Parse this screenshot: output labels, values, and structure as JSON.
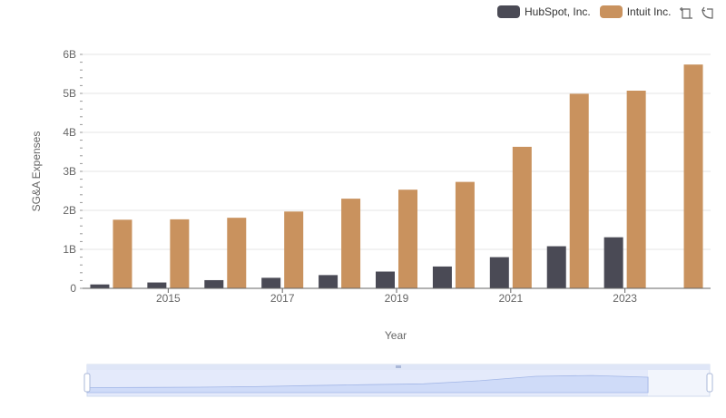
{
  "legend": {
    "items": [
      {
        "label": "HubSpot, Inc.",
        "color": "#4a4a55"
      },
      {
        "label": "Intuit Inc.",
        "color": "#c9925e"
      }
    ]
  },
  "toolbox": {
    "icons": [
      "zoom-icon",
      "reset-icon"
    ]
  },
  "chart_data": {
    "type": "bar",
    "xlabel": "Year",
    "ylabel": "SG&A Expenses",
    "x": [
      2014,
      2015,
      2016,
      2017,
      2018,
      2019,
      2020,
      2021,
      2022,
      2023,
      2024
    ],
    "x_tick_labels": [
      "2015",
      "2017",
      "2019",
      "2021",
      "2023"
    ],
    "x_tick_values": [
      2015,
      2017,
      2019,
      2021,
      2023
    ],
    "ylim": [
      0,
      6000000000
    ],
    "y_tick_values": [
      0,
      1000000000,
      2000000000,
      3000000000,
      4000000000,
      5000000000,
      6000000000
    ],
    "y_tick_labels": [
      "0",
      "1B",
      "2B",
      "3B",
      "4B",
      "5B",
      "6B"
    ],
    "grid": true,
    "legend_position": "top-right",
    "series": [
      {
        "name": "HubSpot, Inc.",
        "color": "#4a4a55",
        "values": [
          100000000,
          150000000,
          210000000,
          270000000,
          340000000,
          430000000,
          560000000,
          800000000,
          1080000000,
          1310000000,
          null
        ]
      },
      {
        "name": "Intuit Inc.",
        "color": "#c9925e",
        "values": [
          1760000000,
          1770000000,
          1810000000,
          1970000000,
          2300000000,
          2530000000,
          2730000000,
          3630000000,
          4990000000,
          5070000000,
          5740000000
        ]
      }
    ]
  }
}
